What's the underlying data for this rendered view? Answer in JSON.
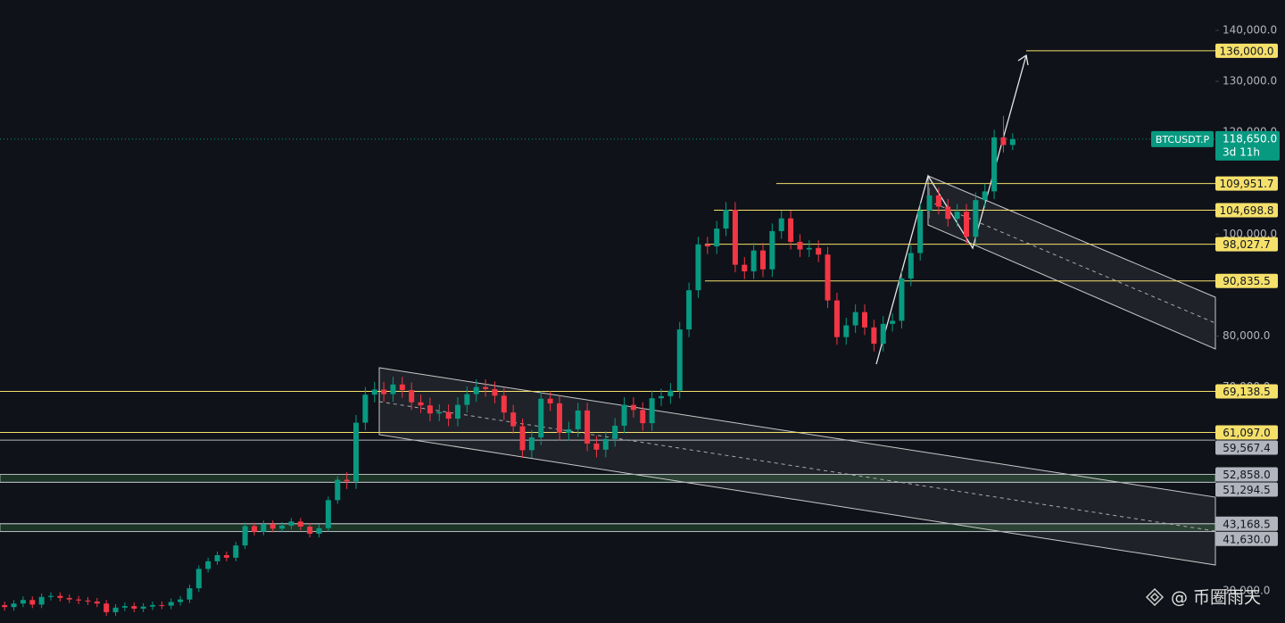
{
  "chart_data": {
    "type": "candlestick",
    "symbol": "BTCUSDT.P",
    "last_price": {
      "value": 118650,
      "label": "118,650.0"
    },
    "countdown": "3d 11h",
    "up_color": "#089981",
    "down_color": "#f23645",
    "ylim": [
      23684,
      145965
    ],
    "yticks": [
      {
        "value": 30000,
        "label": "30,000.0"
      },
      {
        "value": 70000,
        "label": "70,000.0"
      },
      {
        "value": 80000,
        "label": "80,000.0"
      },
      {
        "value": 100000,
        "label": "100,000.0"
      },
      {
        "value": 120000,
        "label": "120,000.0"
      },
      {
        "value": 130000,
        "label": "130,000.0"
      },
      {
        "value": 140000,
        "label": "140,000.0"
      }
    ],
    "levels": [
      {
        "value": 136000,
        "label": "136,000.0",
        "color": "#f5e06a"
      },
      {
        "value": 109951.7,
        "label": "109,951.7",
        "color": "#f5e06a"
      },
      {
        "value": 104698.8,
        "label": "104,698.8",
        "color": "#f5e06a"
      },
      {
        "value": 98027.7,
        "label": "98,027.7",
        "color": "#f5e06a"
      },
      {
        "value": 90835.5,
        "label": "90,835.5",
        "color": "#f5e06a"
      },
      {
        "value": 69138.5,
        "label": "69,138.5",
        "color": "#f5e06a"
      },
      {
        "value": 61097.0,
        "label": "61,097.0",
        "color": "#f5e06a"
      },
      {
        "value": 59567.4,
        "label": "59,567.4",
        "color": "#b2b5be"
      },
      {
        "value": 52858.0,
        "label": "52,858.0",
        "color": "#b2b5be"
      },
      {
        "value": 51294.5,
        "label": "51,294.5",
        "color": "#b2b5be"
      },
      {
        "value": 43168.5,
        "label": "43,168.5",
        "color": "#b2b5be"
      },
      {
        "value": 41630.0,
        "label": "41,630.0",
        "color": "#b2b5be"
      }
    ],
    "ohlc": [
      [
        27200,
        27900,
        26100,
        26800
      ],
      [
        26800,
        28200,
        26100,
        27500
      ],
      [
        27500,
        28900,
        26800,
        28200
      ],
      [
        28200,
        28900,
        26600,
        27300
      ],
      [
        27300,
        29500,
        26600,
        28800
      ],
      [
        28800,
        29700,
        28100,
        29000
      ],
      [
        29000,
        29700,
        27900,
        28600
      ],
      [
        28600,
        29300,
        27600,
        28300
      ],
      [
        28300,
        29000,
        27400,
        28100
      ],
      [
        28100,
        28800,
        27200,
        27900
      ],
      [
        27900,
        28600,
        26800,
        27500
      ],
      [
        27500,
        28200,
        25100,
        25800
      ],
      [
        25800,
        27400,
        25100,
        26700
      ],
      [
        26700,
        27700,
        26000,
        27000
      ],
      [
        27000,
        27700,
        25800,
        26500
      ],
      [
        26500,
        27600,
        25800,
        26900
      ],
      [
        26900,
        27900,
        26200,
        27200
      ],
      [
        27200,
        27900,
        26400,
        27100
      ],
      [
        27100,
        28500,
        26400,
        27800
      ],
      [
        27800,
        29000,
        27100,
        28300
      ],
      [
        28300,
        31200,
        27600,
        30500
      ],
      [
        30500,
        35000,
        29800,
        34300
      ],
      [
        34300,
        36500,
        33600,
        35800
      ],
      [
        35800,
        37700,
        35100,
        37000
      ],
      [
        37000,
        37700,
        35800,
        36500
      ],
      [
        36500,
        39600,
        35800,
        38900
      ],
      [
        38900,
        43400,
        38200,
        42700
      ],
      [
        42700,
        43400,
        40900,
        41600
      ],
      [
        41600,
        43800,
        40900,
        43100
      ],
      [
        43100,
        43800,
        41500,
        42200
      ],
      [
        42200,
        43500,
        41500,
        42800
      ],
      [
        42800,
        44300,
        42100,
        43600
      ],
      [
        43600,
        44300,
        41900,
        42600
      ],
      [
        42600,
        43300,
        40500,
        41200
      ],
      [
        41200,
        43000,
        40500,
        42300
      ],
      [
        42300,
        48500,
        41600,
        47800
      ],
      [
        47800,
        52500,
        47100,
        51800
      ],
      [
        51800,
        53300,
        50000,
        51500
      ],
      [
        51500,
        64500,
        50000,
        63000
      ],
      [
        63000,
        70000,
        61500,
        68500
      ],
      [
        68500,
        71000,
        67000,
        69500
      ],
      [
        69500,
        71000,
        67100,
        68600
      ],
      [
        68600,
        72000,
        67100,
        70500
      ],
      [
        70500,
        72000,
        67900,
        69400
      ],
      [
        69400,
        70900,
        65500,
        67000
      ],
      [
        67000,
        68500,
        64900,
        66400
      ],
      [
        66400,
        67900,
        63300,
        64800
      ],
      [
        64800,
        66600,
        63300,
        65100
      ],
      [
        65100,
        66600,
        62300,
        63800
      ],
      [
        63800,
        68000,
        62300,
        66500
      ],
      [
        66500,
        70100,
        65000,
        68600
      ],
      [
        68600,
        71500,
        67100,
        70000
      ],
      [
        70000,
        71500,
        68100,
        69600
      ],
      [
        69600,
        71100,
        66800,
        68300
      ],
      [
        68300,
        69800,
        63500,
        65000
      ],
      [
        65000,
        66500,
        60800,
        62300
      ],
      [
        62300,
        63800,
        56100,
        57600
      ],
      [
        57600,
        61600,
        56100,
        60100
      ],
      [
        60100,
        69200,
        58600,
        67700
      ],
      [
        67700,
        69200,
        65300,
        66800
      ],
      [
        66800,
        68300,
        59500,
        61000
      ],
      [
        61000,
        63200,
        59500,
        61700
      ],
      [
        61700,
        66900,
        60200,
        65400
      ],
      [
        65400,
        66900,
        57400,
        58900
      ],
      [
        58900,
        60400,
        56200,
        57700
      ],
      [
        57700,
        61300,
        56200,
        59800
      ],
      [
        59800,
        63900,
        58300,
        62400
      ],
      [
        62400,
        68000,
        60900,
        66500
      ],
      [
        66500,
        68000,
        64000,
        65500
      ],
      [
        65500,
        67000,
        61400,
        62900
      ],
      [
        62900,
        69300,
        61400,
        67800
      ],
      [
        67800,
        69700,
        66300,
        68200
      ],
      [
        68200,
        70800,
        66700,
        69300
      ],
      [
        69300,
        82800,
        67800,
        81300
      ],
      [
        81300,
        90500,
        79800,
        89000
      ],
      [
        89000,
        99500,
        87500,
        98000
      ],
      [
        98000,
        99500,
        96100,
        97600
      ],
      [
        97600,
        102600,
        96100,
        101100
      ],
      [
        101100,
        106300,
        99600,
        104800
      ],
      [
        104800,
        106300,
        92500,
        94000
      ],
      [
        94000,
        95500,
        91200,
        92700
      ],
      [
        92700,
        98300,
        91200,
        96800
      ],
      [
        96800,
        98300,
        91600,
        93100
      ],
      [
        93100,
        102100,
        91600,
        100600
      ],
      [
        100600,
        104600,
        99100,
        103100
      ],
      [
        103100,
        104600,
        97000,
        98500
      ],
      [
        98500,
        100000,
        95500,
        97000
      ],
      [
        97000,
        98800,
        95500,
        97300
      ],
      [
        97300,
        98800,
        94500,
        96000
      ],
      [
        96000,
        97500,
        85500,
        87000
      ],
      [
        87000,
        88500,
        78300,
        79800
      ],
      [
        79800,
        83600,
        78300,
        82100
      ],
      [
        82100,
        86200,
        80600,
        84700
      ],
      [
        84700,
        86200,
        80200,
        81700
      ],
      [
        81700,
        83200,
        77000,
        78500
      ],
      [
        78500,
        83900,
        77000,
        82400
      ],
      [
        82400,
        84500,
        80900,
        83000
      ],
      [
        83000,
        92800,
        81500,
        91300
      ],
      [
        91300,
        97800,
        89800,
        96300
      ],
      [
        96300,
        106100,
        94800,
        104600
      ],
      [
        104600,
        109100,
        103100,
        107600
      ],
      [
        107600,
        109100,
        103900,
        105400
      ],
      [
        105400,
        106900,
        101500,
        103000
      ],
      [
        103000,
        105900,
        101500,
        104400
      ],
      [
        104400,
        105900,
        98000,
        99500
      ],
      [
        99500,
        108200,
        98000,
        106700
      ],
      [
        106700,
        109900,
        105200,
        108400
      ],
      [
        108400,
        120500,
        106900,
        119000
      ],
      [
        119000,
        123200,
        116000,
        117500
      ],
      [
        117500,
        119800,
        116500,
        118650
      ]
    ]
  },
  "watermark": "@ 币圈雨天"
}
